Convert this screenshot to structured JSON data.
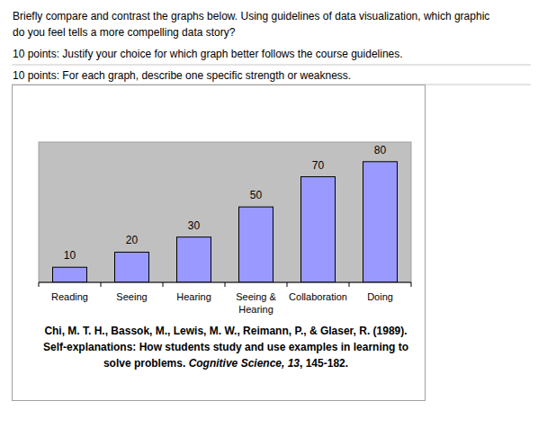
{
  "question": {
    "lines": [
      "Briefly compare and contrast the graphs below. Using guidelines of data visualization, which graphic",
      "do you feel tells a more compelling data story?"
    ],
    "criteria": [
      "10 points: Justify your choice for which graph better follows the course guidelines.",
      "10 points: For each graph, describe one specific strength or weakness."
    ]
  },
  "chart_data": {
    "type": "bar",
    "categories": [
      "Reading",
      "Seeing",
      "Hearing",
      "Seeing & Hearing",
      "Collaboration",
      "Doing"
    ],
    "values": [
      10,
      20,
      30,
      50,
      70,
      80
    ],
    "color": "#9999ff",
    "ylim": [
      0,
      93
    ],
    "data_labels": true,
    "tick_labels": "x"
  },
  "citation": {
    "lines": [
      [
        "Chi, M. T. H., Bassok, M., Lewis, M. W., Reimann, P., & Glaser, R. (1989)."
      ],
      [
        "Self-explanations: How students study and use examples in learning to"
      ],
      [
        "solve problems. ",
        "Cognitive Science, 13",
        ", 145-182."
      ]
    ]
  }
}
